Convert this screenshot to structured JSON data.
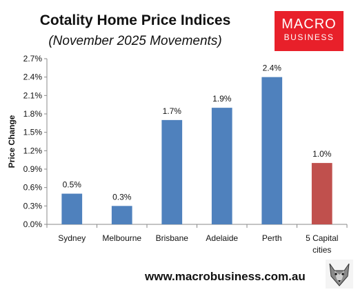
{
  "header": {
    "title": "Cotality Home Price Indices",
    "subtitle": "(November 2025 Movements)"
  },
  "logo": {
    "line1": "MACRO",
    "line2": "BUSINESS"
  },
  "footer": {
    "url": "www.macrobusiness.com.au"
  },
  "colors": {
    "primary_bar": "#4f81bd",
    "highlight_bar": "#c0504d",
    "logo_red": "#e8202a"
  },
  "chart_data": {
    "type": "bar",
    "title": "Cotality Home Price Indices",
    "subtitle": "(November 2025 Movements)",
    "xlabel": "",
    "ylabel": "Price Change",
    "categories": [
      "Sydney",
      "Melbourne",
      "Brisbane",
      "Adelaide",
      "Perth",
      "5 Capital cities"
    ],
    "category_lines": [
      [
        "Sydney"
      ],
      [
        "Melbourne"
      ],
      [
        "Brisbane"
      ],
      [
        "Adelaide"
      ],
      [
        "Perth"
      ],
      [
        "5 Capital",
        "cities"
      ]
    ],
    "values": [
      0.5,
      0.3,
      1.7,
      1.9,
      2.4,
      1.0
    ],
    "data_labels": [
      "0.5%",
      "0.3%",
      "1.7%",
      "1.9%",
      "2.4%",
      "1.0%"
    ],
    "bar_colors": [
      "#4f81bd",
      "#4f81bd",
      "#4f81bd",
      "#4f81bd",
      "#4f81bd",
      "#c0504d"
    ],
    "ylim": [
      0,
      2.7
    ],
    "yticks": [
      0,
      0.3,
      0.6,
      0.9,
      1.2,
      1.5,
      1.8,
      2.1,
      2.4,
      2.7
    ],
    "ytick_labels": [
      "0.0%",
      "0.3%",
      "0.6%",
      "0.9%",
      "1.2%",
      "1.5%",
      "1.8%",
      "2.1%",
      "2.4%",
      "2.7%"
    ],
    "grid": false,
    "legend": "none"
  }
}
